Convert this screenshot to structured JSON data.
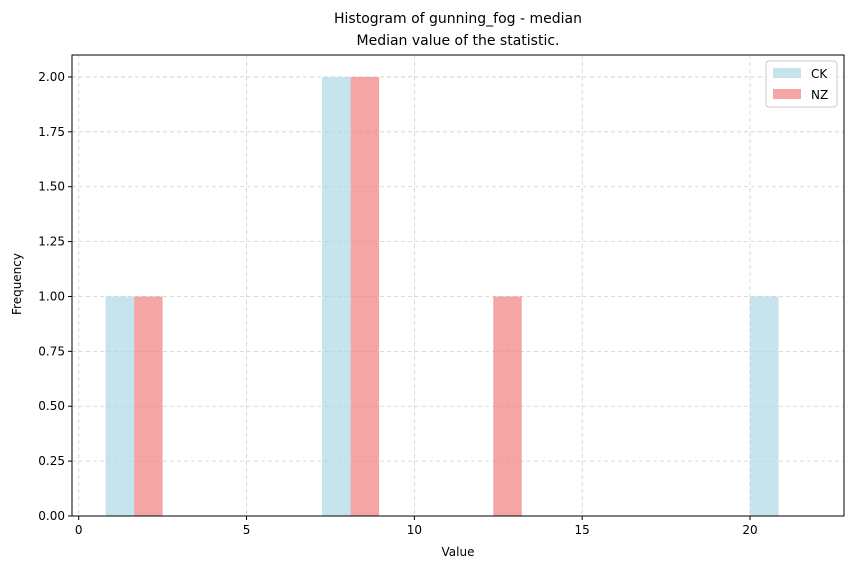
{
  "chart_data": {
    "type": "bar",
    "title": "Histogram of gunning_fog - median",
    "subtitle": "Median value of the statistic.",
    "xlabel": "Value",
    "ylabel": "Frequency",
    "xlim": [
      -0.2,
      22.8
    ],
    "ylim": [
      0,
      2.1
    ],
    "xticks": [
      0,
      5,
      10,
      15,
      20
    ],
    "yticks": [
      0.0,
      0.25,
      0.5,
      0.75,
      1.0,
      1.25,
      1.5,
      1.75,
      2.0
    ],
    "ytick_labels": [
      "0.00",
      "0.25",
      "0.50",
      "0.75",
      "1.00",
      "1.25",
      "1.50",
      "1.75",
      "2.00"
    ],
    "grid": true,
    "legend_position": "top-right",
    "series": [
      {
        "name": "CK",
        "color": "#ADD8E6",
        "bins": [
          {
            "x0": 0.8,
            "x1": 1.65,
            "count": 1
          },
          {
            "x0": 7.25,
            "x1": 8.1,
            "count": 2
          },
          {
            "x0": 20.0,
            "x1": 20.85,
            "count": 1
          }
        ]
      },
      {
        "name": "NZ",
        "color": "#F08080",
        "bins": [
          {
            "x0": 1.65,
            "x1": 2.5,
            "count": 1
          },
          {
            "x0": 8.1,
            "x1": 8.95,
            "count": 2
          },
          {
            "x0": 12.35,
            "x1": 13.2,
            "count": 1
          }
        ]
      }
    ]
  }
}
